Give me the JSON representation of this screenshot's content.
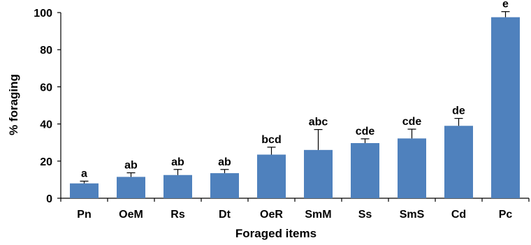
{
  "chart_data": {
    "type": "bar",
    "title": "",
    "xlabel": "Foraged items",
    "ylabel": "% foraging",
    "ylim": [
      0,
      100
    ],
    "yticks": [
      0,
      20,
      40,
      60,
      80,
      100
    ],
    "grid": false,
    "legend": "none",
    "bar_color": "#4f81bd",
    "categories": [
      "Pn",
      "OeM",
      "Rs",
      "Dt",
      "OeR",
      "SmM",
      "Ss",
      "SmS",
      "Cd",
      "Pc"
    ],
    "values": [
      8,
      11.5,
      12.5,
      13.5,
      23.5,
      26,
      29.7,
      32.2,
      39,
      97.5
    ],
    "error_upper": [
      1.2,
      2.2,
      3,
      2,
      4,
      11,
      2.3,
      5,
      4,
      3
    ],
    "significance_labels": [
      "a",
      "ab",
      "ab",
      "ab",
      "bcd",
      "abc",
      "cde",
      "cde",
      "de",
      "e"
    ]
  }
}
